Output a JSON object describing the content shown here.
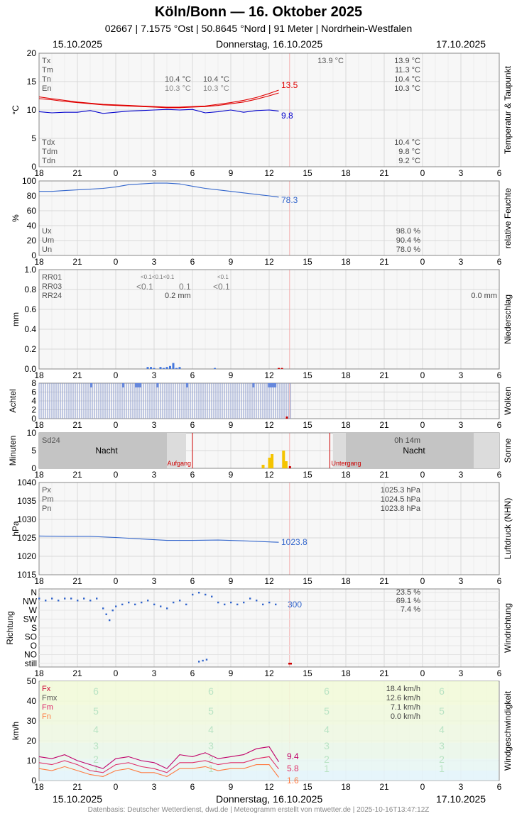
{
  "header": {
    "title": "Köln/Bonn  —  16. Oktober 2025",
    "subtitle": "02667  |  7.1575 °Ost  |  50.8645 °Nord  |  91 Meter  |  Nordrhein-Westfalen"
  },
  "dates": {
    "left": "15.10.2025",
    "center": "Donnerstag, 16.10.2025",
    "right": "17.10.2025"
  },
  "footer": "Datenbasis: Deutscher Wetterdienst, dwd.de | Meteogramm erstellt von mtwetter.de | 2025-10-16T13:47:12Z",
  "x_tick_labels": [
    "18",
    "21",
    "0",
    "3",
    "6",
    "9",
    "12",
    "15",
    "18",
    "21",
    "0",
    "3",
    "6"
  ],
  "colors": {
    "temp": "#e00000",
    "dew": "#0000cc",
    "blue": "#3366cc",
    "rain_bar": "#4477dd",
    "sun_bar": "#f5c400",
    "red_marker": "#cc0000",
    "grid": "#dddddd",
    "plot_bg": "#f7f7f7"
  },
  "chart_data": [
    {
      "id": "temperature",
      "type": "line",
      "side_label": "Temperatur & Taupunkt",
      "ylabel": "°C",
      "ylim": [
        0,
        20
      ],
      "yticks": [
        "0",
        "5",
        "10",
        "15",
        "20"
      ],
      "legend_left": [
        "Tx",
        "Tm",
        "Tn",
        "En"
      ],
      "legend_left_lower": [
        "Tdx",
        "Tdm",
        "Tdn"
      ],
      "annotations": {
        "top_mid": "13.9 °C",
        "n1a": "10.4 °C",
        "n1b": "10.3 °C",
        "n2a": "10.4 °C",
        "n2b": "10.3 °C"
      },
      "stats_right": [
        "13.9 °C",
        "11.3 °C",
        "10.4 °C",
        "10.3 °C"
      ],
      "stats_right_lower": [
        "10.4 °C",
        "9.8 °C",
        "9.2 °C"
      ],
      "last_values": {
        "temp": "13.5",
        "dew": "9.8"
      },
      "series": [
        {
          "key": "temp",
          "x": [
            18,
            19,
            20,
            21,
            22,
            23,
            24,
            25,
            26,
            27,
            28,
            29,
            30,
            31,
            32,
            33,
            34,
            35,
            36,
            36.75
          ],
          "values": [
            12.3,
            12.0,
            11.7,
            11.4,
            11.2,
            11.0,
            10.9,
            10.8,
            10.7,
            10.6,
            10.5,
            10.5,
            10.6,
            10.7,
            11.0,
            11.3,
            11.7,
            12.2,
            12.9,
            13.5
          ]
        },
        {
          "key": "temp2",
          "x": [
            18,
            19,
            20,
            21,
            22,
            23,
            24,
            25,
            26,
            27,
            28,
            29,
            30,
            31,
            32,
            33,
            34,
            35,
            36,
            36.75
          ],
          "values": [
            12.0,
            11.8,
            11.5,
            11.3,
            11.1,
            10.9,
            10.8,
            10.7,
            10.6,
            10.5,
            10.4,
            10.4,
            10.5,
            10.6,
            10.8,
            11.1,
            11.4,
            11.9,
            12.5,
            13.0
          ]
        },
        {
          "key": "dew",
          "x": [
            18,
            19,
            20,
            21,
            22,
            23,
            24,
            25,
            26,
            27,
            28,
            29,
            30,
            31,
            32,
            33,
            34,
            35,
            36,
            36.75
          ],
          "values": [
            9.7,
            9.5,
            9.6,
            9.6,
            9.9,
            9.4,
            9.6,
            9.8,
            9.9,
            10.0,
            10.1,
            10.0,
            10.1,
            9.5,
            9.7,
            10.0,
            9.6,
            9.9,
            10.0,
            9.8
          ]
        }
      ]
    },
    {
      "id": "humidity",
      "type": "line",
      "side_label": "relative Feuchte",
      "ylabel": "%",
      "ylim": [
        0,
        100
      ],
      "yticks": [
        "0",
        "20",
        "40",
        "60",
        "80",
        "100"
      ],
      "legend_left": [
        "Ux",
        "Um",
        "Un"
      ],
      "stats_right": [
        "98.0 %",
        "90.4 %",
        "78.0 %"
      ],
      "last_value": "78.3",
      "x": [
        18,
        19,
        20,
        21,
        22,
        23,
        24,
        25,
        26,
        27,
        28,
        29,
        30,
        31,
        32,
        33,
        34,
        35,
        36,
        36.75
      ],
      "values": [
        86,
        86,
        87,
        88,
        89,
        90,
        92,
        95,
        96,
        97,
        97,
        96,
        93,
        90,
        88,
        86,
        84,
        82,
        80,
        78.3
      ]
    },
    {
      "id": "precipitation",
      "type": "bar",
      "side_label": "Niederschlag",
      "ylabel": "mm",
      "ylim": [
        0,
        1.0
      ],
      "yticks": [
        "0.0",
        "0.2",
        "0.4",
        "0.6",
        "0.8",
        "1.0"
      ],
      "legend_left": [
        "RR01",
        "RR03",
        "RR24"
      ],
      "labels": {
        "rr01a": "<0.1<0.1<0.1",
        "rr01b": "<0.1",
        "rr03a": "<0.1",
        "rr03b": "0.1",
        "rr03c": "<0.1",
        "rr24": "0.2 mm",
        "right": "0.0 mm"
      },
      "x": [
        26.5,
        26.75,
        27.0,
        27.5,
        27.75,
        28.0,
        28.25,
        28.5,
        28.75,
        29.0,
        31.75,
        36.75,
        37.0
      ],
      "values": [
        0.02,
        0.02,
        0.01,
        0.02,
        0.01,
        0.02,
        0.03,
        0.06,
        0.01,
        0.02,
        0.01,
        0.01,
        0.01
      ]
    },
    {
      "id": "clouds",
      "type": "bar",
      "side_label": "Wolken",
      "ylabel": "Achtel",
      "ylim": [
        0,
        8
      ],
      "yticks": [
        "0",
        "2",
        "4",
        "6",
        "8"
      ],
      "note": "overcast 8/8 bars from 18 to about 13:40"
    },
    {
      "id": "sunshine",
      "type": "bar",
      "side_label": "Sonne",
      "ylabel": "Minuten",
      "ylim": [
        0,
        10
      ],
      "yticks": [
        "0",
        "5",
        "10"
      ],
      "legend_left": [
        "Sd24"
      ],
      "stat_right": "0h 14m",
      "night_label": "Nacht",
      "sunrise_label": "Aufgang",
      "sunset_label": "Untergang",
      "sunrise": 30.0,
      "sunset": 40.75,
      "x": [
        35.5,
        36.0,
        36.2,
        37.1,
        37.3
      ],
      "values": [
        1,
        3,
        4,
        5,
        2
      ]
    },
    {
      "id": "pressure",
      "type": "line",
      "side_label": "Luftdruck (NHN)",
      "ylabel": "hPa",
      "ylim": [
        1015,
        1040
      ],
      "yticks": [
        "1015",
        "1020",
        "1025",
        "1030",
        "1035",
        "1040"
      ],
      "legend_left": [
        "Px",
        "Pm",
        "Pn"
      ],
      "stats_right": [
        "1025.3 hPa",
        "1024.5 hPa",
        "1023.8 hPa"
      ],
      "last_value": "1023.8",
      "x": [
        18,
        20,
        22,
        24,
        26,
        28,
        30,
        32,
        34,
        36,
        36.75
      ],
      "values": [
        1025.5,
        1025.4,
        1025.4,
        1025.1,
        1024.7,
        1024.3,
        1024.3,
        1024.4,
        1024.2,
        1023.9,
        1023.8
      ]
    },
    {
      "id": "wind_direction",
      "type": "scatter",
      "side_label": "Windrichtung",
      "ylabel": "Richtung",
      "categories": [
        "still",
        "NO",
        "O",
        "SO",
        "S",
        "SW",
        "W",
        "NW",
        "N"
      ],
      "stats_right": [
        "23.5 %",
        "69.1 %",
        "7.4 %"
      ],
      "last_value": "300",
      "x": [
        18.0,
        18.5,
        19.0,
        19.5,
        20.0,
        20.5,
        21.0,
        21.5,
        22.0,
        22.5,
        23.0,
        23.25,
        23.5,
        23.75,
        24.0,
        24.5,
        25.0,
        25.5,
        26.0,
        26.5,
        27.0,
        27.5,
        28.0,
        28.5,
        29.0,
        29.5,
        30.0,
        30.5,
        31.0,
        31.5,
        32.0,
        32.5,
        33.0,
        33.5,
        34.0,
        34.5,
        35.0,
        35.5,
        36.0,
        36.5,
        30.5,
        30.8,
        31.1
      ],
      "values": [
        330,
        320,
        330,
        320,
        330,
        330,
        320,
        330,
        320,
        330,
        280,
        250,
        220,
        270,
        290,
        300,
        310,
        300,
        310,
        320,
        300,
        290,
        280,
        310,
        320,
        300,
        350,
        360,
        350,
        340,
        310,
        300,
        310,
        300,
        310,
        330,
        320,
        300,
        310,
        300,
        10,
        15,
        20
      ]
    },
    {
      "id": "wind_speed",
      "type": "line",
      "side_label": "Windgeschwindigkeit",
      "ylabel": "km/h",
      "ylim": [
        0,
        50
      ],
      "yticks": [
        "0",
        "10",
        "20",
        "30",
        "40",
        "50"
      ],
      "legend_left": [
        "Fx",
        "Fmx",
        "Fm",
        "Fn"
      ],
      "stats_right": [
        "18.4 km/h",
        "12.6 km/h",
        "7.1 km/h",
        "0.0 km/h"
      ],
      "beaufort_labels": [
        "1",
        "2",
        "3",
        "4",
        "5",
        "6"
      ],
      "last_values": {
        "gust": "9.4",
        "mean": "5.8",
        "min": "1.6"
      },
      "series": [
        {
          "key": "gust",
          "x": [
            18,
            19,
            20,
            21,
            22,
            23,
            24,
            25,
            26,
            27,
            28,
            29,
            30,
            31,
            32,
            33,
            34,
            35,
            36,
            36.75
          ],
          "values": [
            12,
            11,
            13,
            10,
            8,
            6,
            11,
            12,
            10,
            9,
            6,
            13,
            12,
            14,
            11,
            12,
            13,
            16,
            17,
            9.4
          ]
        },
        {
          "key": "mean",
          "x": [
            18,
            19,
            20,
            21,
            22,
            23,
            24,
            25,
            26,
            27,
            28,
            29,
            30,
            31,
            32,
            33,
            34,
            35,
            36,
            36.75
          ],
          "values": [
            9,
            8,
            10,
            8,
            5,
            4,
            8,
            9,
            7,
            6,
            4,
            9,
            9,
            10,
            8,
            9,
            9,
            11,
            12,
            5.8
          ]
        },
        {
          "key": "min",
          "x": [
            18,
            19,
            20,
            21,
            22,
            23,
            24,
            25,
            26,
            27,
            28,
            29,
            30,
            31,
            32,
            33,
            34,
            35,
            36,
            36.75
          ],
          "values": [
            6,
            5,
            7,
            5,
            3,
            2,
            5,
            6,
            4,
            4,
            2,
            6,
            6,
            7,
            5,
            6,
            6,
            8,
            8,
            1.6
          ]
        }
      ]
    }
  ]
}
